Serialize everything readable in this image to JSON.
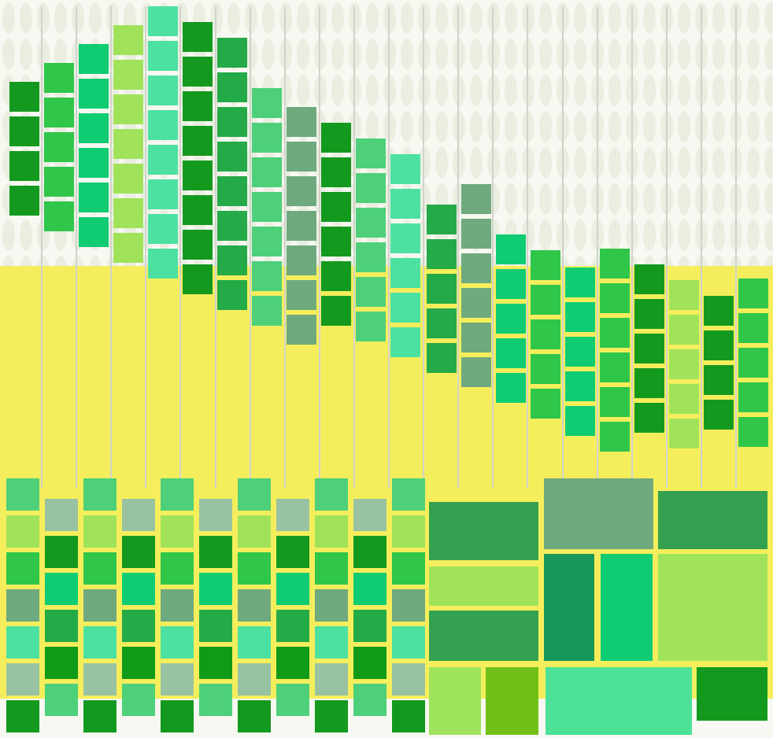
{
  "colors": {
    "background_top": "#f6f8f1",
    "background_middle": "#f5ee5c",
    "background_bottom": "#f6f8f1",
    "pattern": "#e9eee0",
    "line": "#d2d2cc"
  }
}
